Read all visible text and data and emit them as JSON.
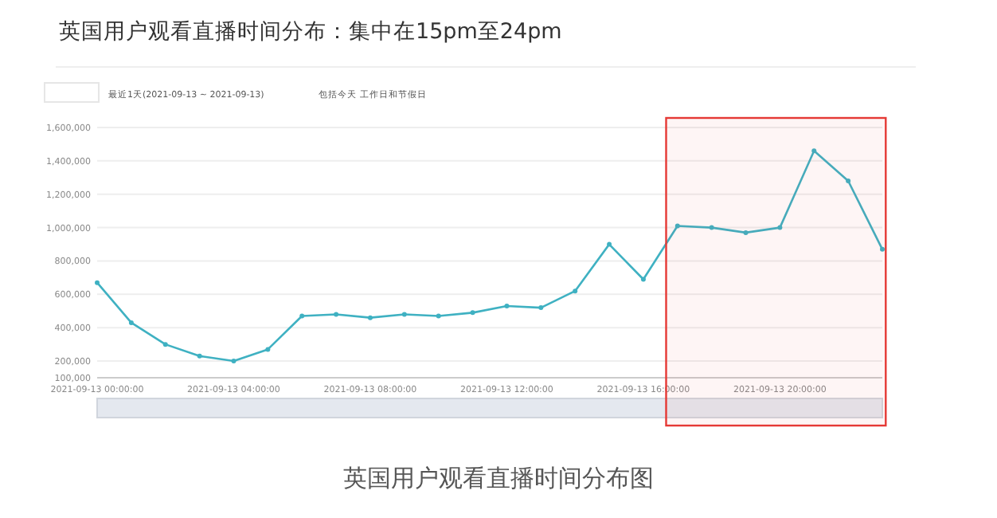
{
  "chart_data": {
    "type": "line",
    "title": "英国用户观看直播时间分布：集中在15pm至24pm",
    "annotations": [
      "最近1天(2021-09-13 ~ 2021-09-13)",
      "包括今天",
      "工作日和节假日",
      "英国用户观看直播时间分布图"
    ],
    "x": [
      "2021-09-13T00:00",
      "2021-09-13T01:00",
      "2021-09-13T02:00",
      "2021-09-13T03:00",
      "2021-09-13T04:00",
      "2021-09-13T05:00",
      "2021-09-13T06:00",
      "2021-09-13T07:00",
      "2021-09-13T08:00",
      "2021-09-13T09:00",
      "2021-09-13T10:00",
      "2021-09-13T11:00",
      "2021-09-13T12:00",
      "2021-09-13T13:00",
      "2021-09-13T14:00",
      "2021-09-13T15:00",
      "2021-09-13T16:00",
      "2021-09-13T17:00",
      "2021-09-13T18:00",
      "2021-09-13T19:00",
      "2021-09-13T20:00",
      "2021-09-13T21:00",
      "2021-09-13T22:00",
      "2021-09-13T23:00"
    ],
    "series": [
      {
        "color": "#3fb1c2",
        "values": [
          670000,
          430000,
          300000,
          230000,
          200000,
          270000,
          470000,
          480000,
          460000,
          480000,
          470000,
          490000,
          530000,
          520000,
          620000,
          900000,
          690000,
          1010000,
          1000000,
          970000,
          1000000,
          1460000,
          1280000,
          870000
        ]
      }
    ],
    "xlim": [
      "2021-09-13T00:00",
      "2021-09-13T23:00"
    ],
    "xticks": [
      {
        "value": "2021-09-13T00:00",
        "label": "2021-09-13 00:00:00"
      },
      {
        "value": "2021-09-13T04:00",
        "label": "2021-09-13 04:00:00"
      },
      {
        "value": "2021-09-13T08:00",
        "label": "2021-09-13 08:00:00"
      },
      {
        "value": "2021-09-13T12:00",
        "label": "2021-09-13 12:00:00"
      },
      {
        "value": "2021-09-13T16:00",
        "label": "2021-09-13 16:00:00"
      },
      {
        "value": "2021-09-13T20:00",
        "label": "2021-09-13 20:00:00"
      }
    ],
    "ylim": [
      100000,
      1600000
    ],
    "yticks": [
      {
        "value": 100000,
        "label": "100,000"
      },
      {
        "value": 200000,
        "label": "200,000"
      },
      {
        "value": 400000,
        "label": "400,000"
      },
      {
        "value": 600000,
        "label": "600,000"
      },
      {
        "value": 800000,
        "label": "800,000"
      },
      {
        "value": 1000000,
        "label": "1,000,000"
      },
      {
        "value": 1200000,
        "label": "1,200,000"
      },
      {
        "value": 1400000,
        "label": "1,400,000"
      },
      {
        "value": 1600000,
        "label": "1,600,000"
      }
    ],
    "bands": [
      {
        "axis": "x",
        "from": "2021-09-13T16:40",
        "to": "2021-09-13T23:06",
        "color": "#e53935"
      }
    ],
    "grid": "y",
    "marker": "circle",
    "line_style": "solid"
  }
}
